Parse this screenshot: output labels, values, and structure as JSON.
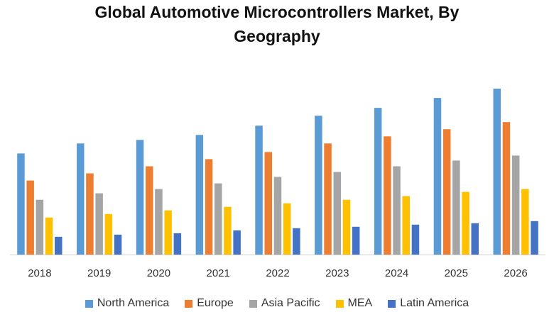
{
  "chart_data": {
    "type": "bar",
    "title_line1": "Global Automotive Microcontrollers Market, By",
    "title_line2": "Geography",
    "categories": [
      "2018",
      "2019",
      "2020",
      "2021",
      "2022",
      "2023",
      "2024",
      "2025",
      "2026"
    ],
    "series": [
      {
        "name": "North America",
        "color": "#5B9BD5",
        "values": [
          142,
          156,
          161,
          168,
          181,
          195,
          206,
          220,
          233
        ]
      },
      {
        "name": "Europe",
        "color": "#ED7D31",
        "values": [
          104,
          114,
          124,
          134,
          144,
          156,
          166,
          176,
          186
        ]
      },
      {
        "name": "Asia Pacific",
        "color": "#A5A5A5",
        "values": [
          77,
          86,
          92,
          100,
          109,
          116,
          124,
          132,
          139
        ]
      },
      {
        "name": "MEA",
        "color": "#FFC000",
        "values": [
          52,
          57,
          62,
          67,
          72,
          77,
          82,
          88,
          92
        ]
      },
      {
        "name": "Latin America",
        "color": "#4472C4",
        "values": [
          25,
          28,
          30,
          34,
          37,
          39,
          42,
          44,
          47
        ]
      }
    ],
    "ylim": [
      0,
      240
    ],
    "grid": false,
    "legend_position": "bottom"
  }
}
